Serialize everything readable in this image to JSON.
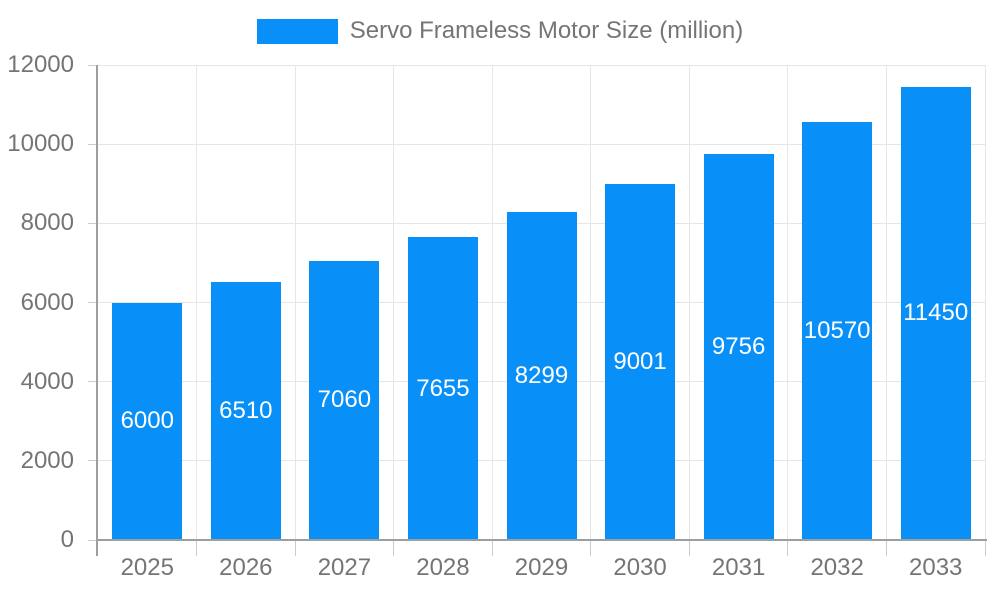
{
  "chart_data": {
    "type": "bar",
    "title": "Servo Frameless Motor Size (million)",
    "categories": [
      "2025",
      "2026",
      "2027",
      "2028",
      "2029",
      "2030",
      "2031",
      "2032",
      "2033"
    ],
    "series": [
      {
        "name": "Servo Frameless Motor Size (million)",
        "values": [
          6000,
          6510,
          7060,
          7655,
          8299,
          9001,
          9756,
          10570,
          11450
        ]
      }
    ],
    "bar_value_labels": [
      "6000",
      "6510",
      "7060",
      "7655",
      "8299",
      "9001",
      "9756",
      "10570",
      "11450"
    ],
    "xlabel": "",
    "ylabel": "",
    "ylim": [
      0,
      12000
    ],
    "yticks": [
      0,
      2000,
      4000,
      6000,
      8000,
      10000,
      12000
    ],
    "ytick_labels": [
      "0",
      "2000",
      "4000",
      "6000",
      "8000",
      "10000",
      "12000"
    ],
    "grid": true,
    "legend_position": "top",
    "colors": {
      "bar": "#0990f8",
      "bar_label": "#ffffff",
      "axis_text": "#757575",
      "axis_line": "#9e9e9e",
      "gridline": "#e6e6e6",
      "tick": "#cccccc",
      "background": "#ffffff"
    }
  }
}
